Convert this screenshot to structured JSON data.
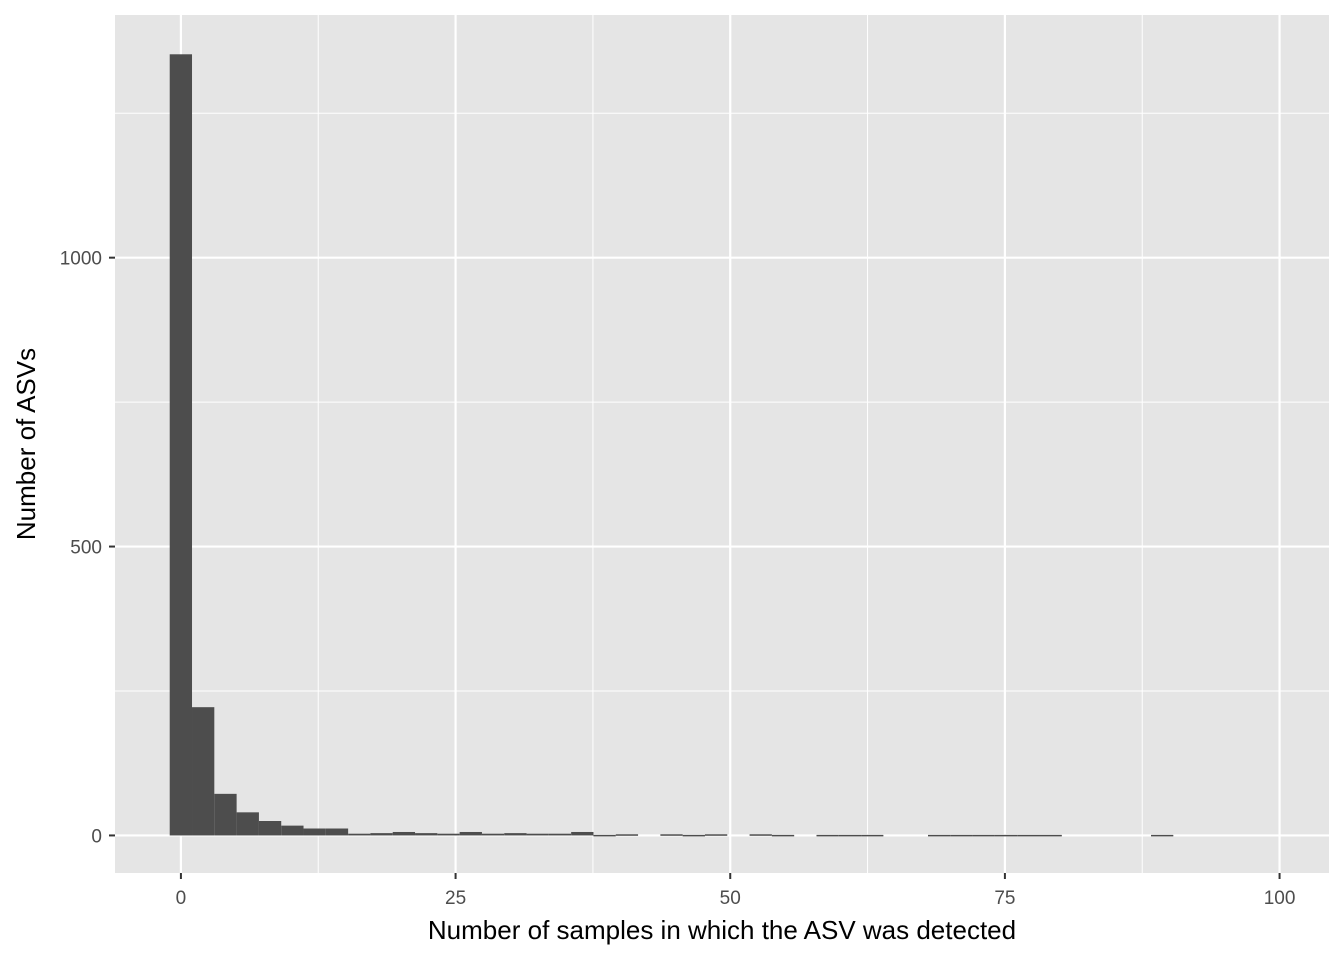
{
  "chart_data": {
    "type": "bar",
    "subtype": "histogram",
    "xlabel": "Number of samples in which the ASV was detected",
    "ylabel": "Number of ASVs",
    "xlim": [
      -6,
      104.5
    ],
    "ylim": [
      -65,
      1420
    ],
    "x_ticks": [
      0,
      25,
      50,
      75,
      100
    ],
    "y_ticks": [
      0,
      500,
      1000
    ],
    "x_minor_ticks": [
      12.5,
      37.5,
      62.5,
      87.5
    ],
    "y_minor_ticks": [
      250,
      750,
      1250
    ],
    "grid": true,
    "bin_width": 2.03,
    "bin_start": -1.02,
    "counts": [
      1352,
      222,
      72,
      40,
      25,
      17,
      12,
      12,
      3,
      4,
      6,
      4,
      3,
      6,
      3,
      4,
      3,
      3,
      6,
      1,
      2,
      0,
      2,
      1,
      2,
      0,
      2,
      1,
      0,
      1,
      1,
      1,
      0,
      0,
      1,
      1,
      1,
      1,
      1,
      1,
      0,
      0,
      0,
      0,
      1,
      0,
      0,
      0,
      0,
      0,
      0,
      0,
      0,
      0,
      0,
      0,
      0,
      0,
      0,
      0,
      1
    ],
    "colors": {
      "panel": "#e5e5e5",
      "grid": "#ffffff",
      "bar": "#4d4d4d",
      "tick": "#333333",
      "tick_text": "#4d4d4d"
    }
  }
}
